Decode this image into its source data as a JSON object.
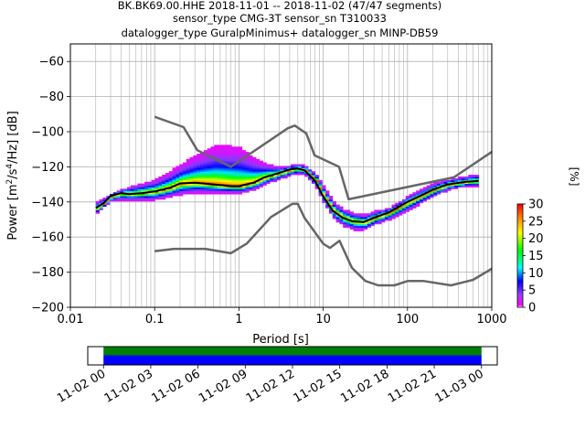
{
  "title_lines": [
    "BK.BK69.00.HHE   2018-11-01 -- 2018-11-02  (47/47 segments)",
    "sensor_type CMG-3T sensor_sn T310033",
    "datalogger_type GuralpMinimus+ datalogger_sn MINP-DB59"
  ],
  "chart_data": [
    {
      "type": "heatmap",
      "title": "",
      "xlabel": "Period [s]",
      "ylabel_parts": [
        "Power [m",
        "2",
        "/s",
        "4",
        "/Hz] [dB]"
      ],
      "x_scale": "log",
      "xlim": [
        0.01,
        1000
      ],
      "ylim": [
        -200,
        -50
      ],
      "x_ticks": [
        0.01,
        0.1,
        1,
        10,
        100,
        1000
      ],
      "x_tick_labels": [
        "0.01",
        "0.1",
        "1",
        "10",
        "100",
        "1000"
      ],
      "y_ticks": [
        -200,
        -180,
        -160,
        -140,
        -120,
        -100,
        -80,
        -60
      ],
      "y_tick_labels": [
        "−200",
        "−180",
        "−160",
        "−140",
        "−120",
        "−100",
        "−80",
        "−60"
      ],
      "grid": true,
      "colorbar": {
        "label": "[%]",
        "range": [
          0,
          30
        ],
        "ticks": [
          0,
          5,
          10,
          15,
          20,
          25,
          30
        ],
        "tick_labels": [
          "0",
          "5",
          "10",
          "15",
          "20",
          "25",
          "30"
        ]
      },
      "series": [
        {
          "role": "new-high-noise-model",
          "color": "#666666",
          "points": [
            [
              0.1,
              -91.5
            ],
            [
              0.22,
              -97.4
            ],
            [
              0.32,
              -110.5
            ],
            [
              0.8,
              -120
            ],
            [
              3.8,
              -98
            ],
            [
              4.6,
              -96.5
            ],
            [
              6.3,
              -101
            ],
            [
              7.9,
              -113.5
            ],
            [
              15.4,
              -120
            ],
            [
              20,
              -138.5
            ],
            [
              354.8,
              -126
            ],
            [
              1000,
              -111.5
            ]
          ]
        },
        {
          "role": "new-low-noise-model",
          "color": "#666666",
          "points": [
            [
              0.1,
              -168
            ],
            [
              0.17,
              -166.7
            ],
            [
              0.4,
              -166.7
            ],
            [
              0.8,
              -169.2
            ],
            [
              1.24,
              -163.7
            ],
            [
              2.4,
              -148.6
            ],
            [
              4.3,
              -141.1
            ],
            [
              5,
              -141.1
            ],
            [
              6,
              -149
            ],
            [
              10,
              -163.8
            ],
            [
              12,
              -166.2
            ],
            [
              15.6,
              -162.1
            ],
            [
              21.9,
              -177.5
            ],
            [
              31.6,
              -185
            ],
            [
              45,
              -187.5
            ],
            [
              70,
              -187.5
            ],
            [
              101,
              -185
            ],
            [
              154,
              -185
            ],
            [
              328,
              -187.5
            ],
            [
              600,
              -184.4
            ],
            [
              1000,
              -178
            ]
          ]
        },
        {
          "role": "mean-psd",
          "color": "#000000",
          "points": [
            [
              0.02,
              -143.5
            ],
            [
              0.025,
              -140.5
            ],
            [
              0.03,
              -136.5
            ],
            [
              0.04,
              -135
            ],
            [
              0.05,
              -135.5
            ],
            [
              0.07,
              -135
            ],
            [
              0.1,
              -134
            ],
            [
              0.15,
              -132
            ],
            [
              0.2,
              -129.5
            ],
            [
              0.3,
              -129
            ],
            [
              0.5,
              -130
            ],
            [
              0.8,
              -131
            ],
            [
              1,
              -131
            ],
            [
              1.5,
              -129
            ],
            [
              2,
              -126
            ],
            [
              3,
              -123.5
            ],
            [
              4,
              -121.5
            ],
            [
              5,
              -121
            ],
            [
              6,
              -122
            ],
            [
              8,
              -128
            ],
            [
              10,
              -137
            ],
            [
              13,
              -145
            ],
            [
              17,
              -149
            ],
            [
              22,
              -151
            ],
            [
              30,
              -151.5
            ],
            [
              40,
              -149
            ],
            [
              60,
              -146
            ],
            [
              100,
              -140
            ],
            [
              150,
              -136
            ],
            [
              200,
              -133
            ],
            [
              300,
              -130
            ],
            [
              500,
              -128.5
            ],
            [
              700,
              -128
            ]
          ]
        }
      ],
      "spread_series": [
        {
          "role": "psd-cloud-upper",
          "points": [
            [
              0.02,
              -140
            ],
            [
              0.03,
              -135
            ],
            [
              0.05,
              -131
            ],
            [
              0.1,
              -127
            ],
            [
              0.15,
              -122
            ],
            [
              0.2,
              -118
            ],
            [
              0.3,
              -113
            ],
            [
              0.5,
              -108
            ],
            [
              0.8,
              -108
            ],
            [
              1,
              -109
            ],
            [
              1.3,
              -113
            ],
            [
              2,
              -118
            ],
            [
              3,
              -120
            ],
            [
              4,
              -119
            ],
            [
              5,
              -118.5
            ],
            [
              6,
              -119.5
            ],
            [
              8,
              -124
            ],
            [
              10,
              -132
            ],
            [
              13,
              -140
            ],
            [
              17,
              -144
            ],
            [
              22,
              -146
            ],
            [
              30,
              -147
            ],
            [
              40,
              -145
            ],
            [
              60,
              -143
            ],
            [
              100,
              -136
            ],
            [
              150,
              -132
            ],
            [
              200,
              -129
            ],
            [
              300,
              -127
            ],
            [
              500,
              -125
            ],
            [
              700,
              -124
            ]
          ]
        },
        {
          "role": "psd-cloud-lower",
          "points": [
            [
              0.02,
              -146
            ],
            [
              0.03,
              -139
            ],
            [
              0.05,
              -139
            ],
            [
              0.1,
              -139
            ],
            [
              0.15,
              -137
            ],
            [
              0.2,
              -136
            ],
            [
              0.3,
              -135
            ],
            [
              0.5,
              -135
            ],
            [
              0.8,
              -135
            ],
            [
              1,
              -135
            ],
            [
              1.5,
              -133
            ],
            [
              2,
              -130
            ],
            [
              3,
              -127
            ],
            [
              4,
              -125
            ],
            [
              5,
              -124
            ],
            [
              6,
              -125
            ],
            [
              8,
              -132
            ],
            [
              10,
              -142
            ],
            [
              13,
              -150
            ],
            [
              17,
              -154
            ],
            [
              22,
              -156
            ],
            [
              30,
              -156
            ],
            [
              40,
              -153
            ],
            [
              60,
              -150
            ],
            [
              100,
              -145
            ],
            [
              150,
              -140
            ],
            [
              200,
              -137
            ],
            [
              300,
              -133
            ],
            [
              500,
              -131
            ],
            [
              700,
              -131
            ]
          ]
        }
      ]
    },
    {
      "type": "bar",
      "role": "data-coverage",
      "x_tick_labels": [
        "11-02 00",
        "11-02 03",
        "11-02 06",
        "11-02 09",
        "11-02 12",
        "11-02 15",
        "11-02 18",
        "11-02 21",
        "11-03 00"
      ],
      "x_range_hours": [
        -1,
        25
      ],
      "bars": [
        {
          "role": "processed-segments",
          "start_hour": 0,
          "end_hour": 24,
          "color": "#008000"
        },
        {
          "role": "available-data",
          "start_hour": 0,
          "end_hour": 24,
          "color": "#0000ff"
        }
      ]
    }
  ]
}
